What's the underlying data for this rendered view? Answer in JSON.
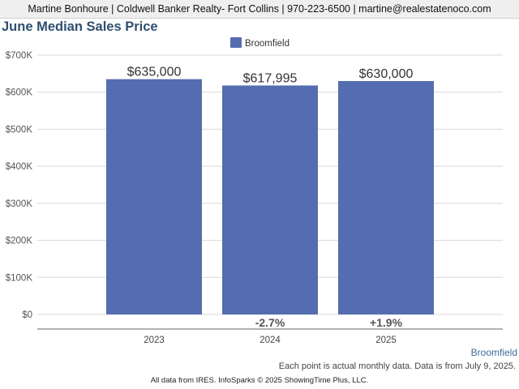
{
  "header": {
    "contact": "Martine Bonhoure | Coldwell Banker Realty- Fort Collins | 970-223-6500 | martine@realestatenoco.com"
  },
  "chart_data": {
    "type": "bar",
    "title": "June Median Sales Price",
    "categories": [
      "2023",
      "2024",
      "2025"
    ],
    "series": [
      {
        "name": "Broomfield",
        "color": "#536db0",
        "values": [
          635000,
          617995,
          630000
        ]
      }
    ],
    "data_labels": [
      "$635,000",
      "$617,995",
      "$630,000"
    ],
    "change_labels": [
      "",
      "-2.7%",
      "+1.9%"
    ],
    "ylim": [
      0,
      700000
    ],
    "yticks": [
      0,
      100000,
      200000,
      300000,
      400000,
      500000,
      600000,
      700000
    ],
    "ytick_labels": [
      "$0",
      "$100K",
      "$200K",
      "$300K",
      "$400K",
      "$500K",
      "$600K",
      "$700K"
    ],
    "xlabel": "",
    "ylabel": "",
    "grid": true,
    "legend": "top-center"
  },
  "footer": {
    "series_link": "Broomfield",
    "note": "Each point is actual monthly data. Data is from July 9, 2025.",
    "credits": "All data from IRES. InfoSparks © 2025 ShowingTime Plus, LLC."
  }
}
